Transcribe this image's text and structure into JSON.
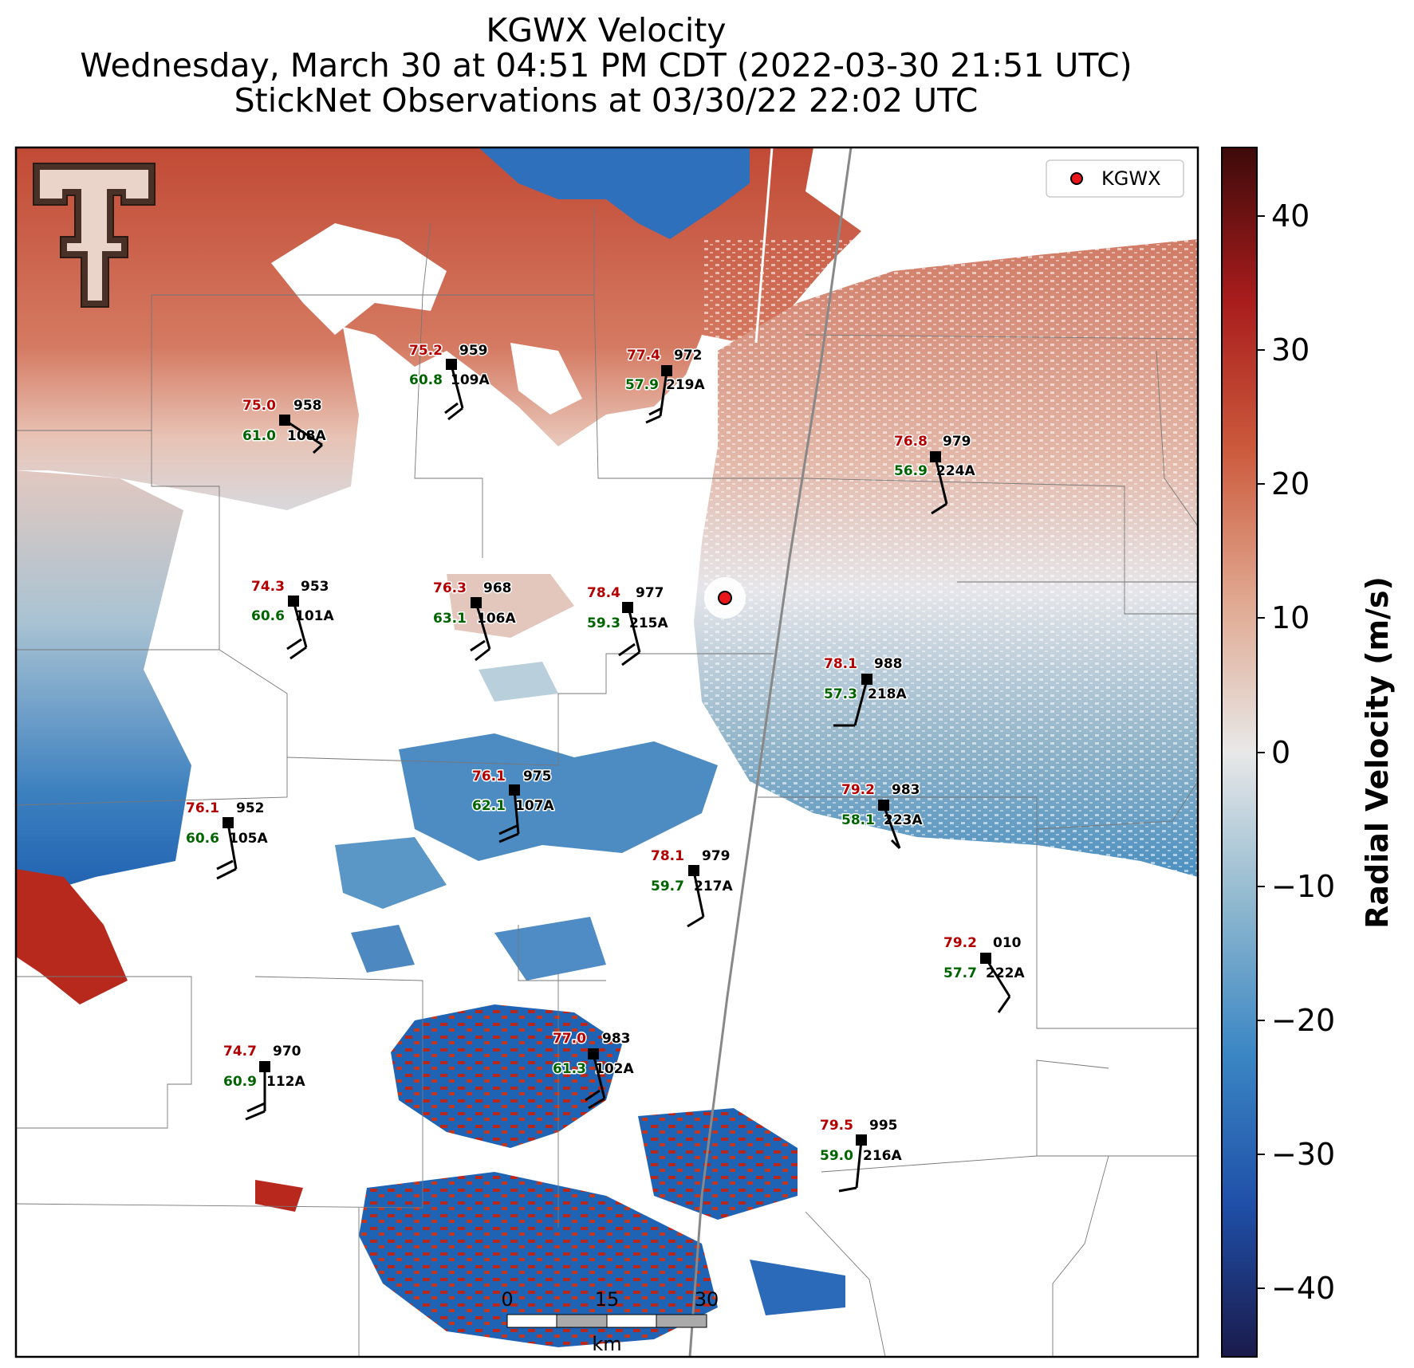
{
  "title": {
    "line1": "KGWX Velocity",
    "line2": "Wednesday, March 30 at 04:51 PM CDT (2022-03-30 21:51 UTC)",
    "line3": "StickNet Observations at 03/30/22 22:02 UTC"
  },
  "legend": {
    "label": "KGWX",
    "marker_color": "#e8151b"
  },
  "colorbar": {
    "label": "Radial Velocity (m/s)",
    "ticks": [
      "40",
      "30",
      "20",
      "10",
      "0",
      "−10",
      "−20",
      "−30",
      "−40"
    ],
    "range": [
      -45,
      45
    ],
    "colors": [
      "#1a1a4a",
      "#1f4fa8",
      "#3a86c4",
      "#8fb8cf",
      "#e8e8e8",
      "#e0a890",
      "#cc5a3c",
      "#a81c1c",
      "#3d0a0a"
    ]
  },
  "scalebar": {
    "ticks": [
      "0",
      "15",
      "30"
    ],
    "unit": "km"
  },
  "stations": [
    {
      "id": "109A",
      "temp": "75.2",
      "dew": "60.8",
      "pres": "959"
    },
    {
      "id": "219A",
      "temp": "77.4",
      "dew": "57.9",
      "pres": "972"
    },
    {
      "id": "108A",
      "temp": "75.0",
      "dew": "61.0",
      "pres": "958"
    },
    {
      "id": "224A",
      "temp": "76.8",
      "dew": "56.9",
      "pres": "979"
    },
    {
      "id": "101A",
      "temp": "74.3",
      "dew": "60.6",
      "pres": "953"
    },
    {
      "id": "106A",
      "temp": "76.3",
      "dew": "63.1",
      "pres": "968"
    },
    {
      "id": "215A",
      "temp": "78.4",
      "dew": "59.3",
      "pres": "977"
    },
    {
      "id": "218A",
      "temp": "78.1",
      "dew": "57.3",
      "pres": "988"
    },
    {
      "id": "107A",
      "temp": "76.1",
      "dew": "62.1",
      "pres": "975"
    },
    {
      "id": "223A",
      "temp": "79.2",
      "dew": "58.1",
      "pres": "983"
    },
    {
      "id": "105A",
      "temp": "76.1",
      "dew": "60.6",
      "pres": "952"
    },
    {
      "id": "217A",
      "temp": "78.1",
      "dew": "59.7",
      "pres": "979"
    },
    {
      "id": "222A",
      "temp": "79.2",
      "dew": "57.7",
      "pres": "010"
    },
    {
      "id": "102A",
      "temp": "77.0",
      "dew": "61.3",
      "pres": "983"
    },
    {
      "id": "112A",
      "temp": "74.7",
      "dew": "60.9",
      "pres": "970"
    },
    {
      "id": "216A",
      "temp": "79.5",
      "dew": "59.0",
      "pres": "995"
    }
  ]
}
